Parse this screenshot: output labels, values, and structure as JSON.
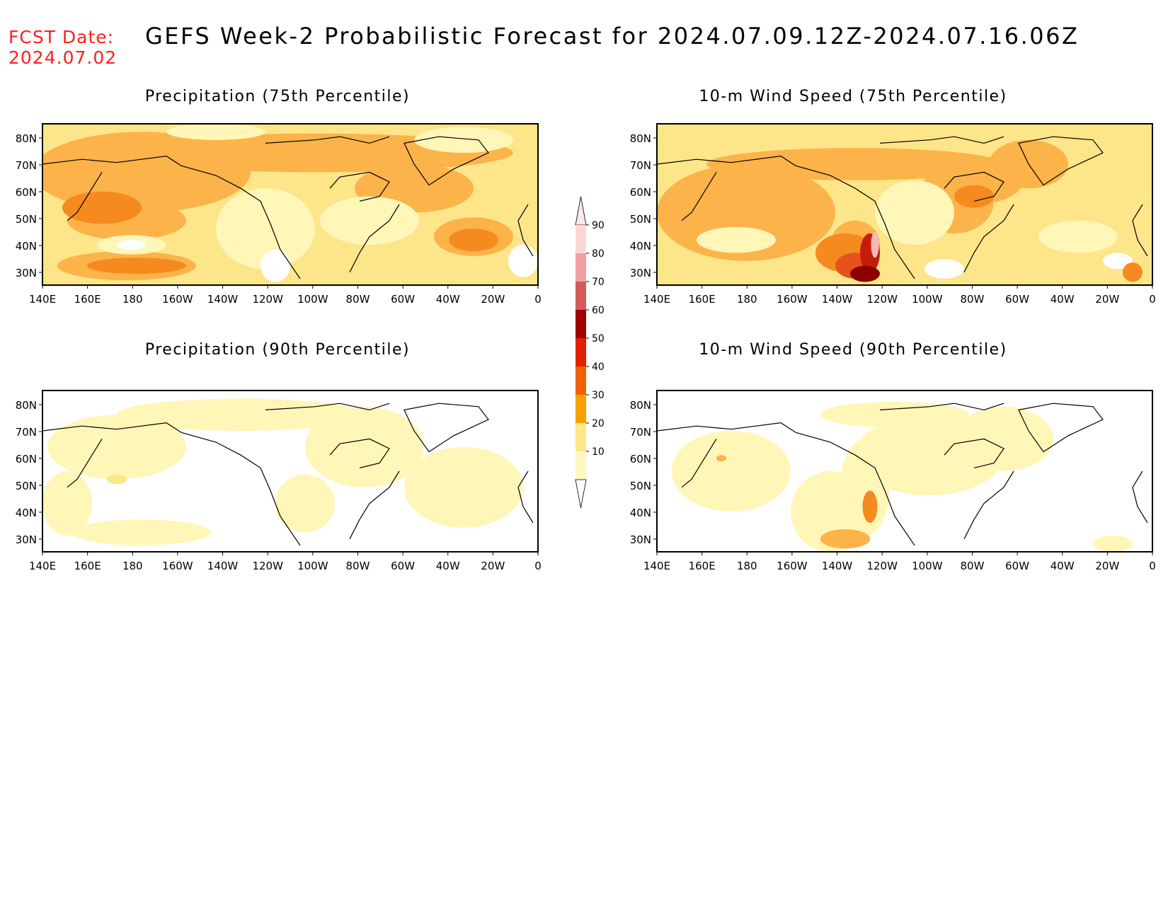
{
  "header": {
    "fcst_label": "FCST Date:",
    "fcst_date": "2024.07.02",
    "title": "GEFS Week-2 Probabilistic Forecast for 2024.07.09.12Z-2024.07.16.06Z"
  },
  "panels": [
    {
      "title": "Precipitation (75th Percentile)",
      "variable": "precipitation",
      "percentile": 75
    },
    {
      "title": "10-m Wind Speed (75th Percentile)",
      "variable": "wind",
      "percentile": 75
    },
    {
      "title": "Precipitation (90th Percentile)",
      "variable": "precipitation",
      "percentile": 90
    },
    {
      "title": "10-m Wind Speed (90th Percentile)",
      "variable": "wind",
      "percentile": 90
    }
  ],
  "axes": {
    "lon_labels": [
      "140E",
      "160E",
      "180",
      "160W",
      "140W",
      "120W",
      "100W",
      "80W",
      "60W",
      "40W",
      "20W",
      "0"
    ],
    "lat_labels": [
      "80N",
      "70N",
      "60N",
      "50N",
      "40N",
      "30N"
    ]
  },
  "colorbar": {
    "levels": [
      "90",
      "80",
      "70",
      "60",
      "50",
      "40",
      "30",
      "20",
      "10"
    ],
    "colors": [
      "#fcd6d6",
      "#f0a0a0",
      "#d45a5a",
      "#a00000",
      "#e02000",
      "#f06000",
      "#f8a000",
      "#fde88a",
      "#fff7c0"
    ]
  },
  "palette": {
    "p10": "#fff6b8",
    "p20": "#fde58a",
    "p30": "#fbb34a",
    "p40": "#f58a1e",
    "p50": "#e5531a",
    "p60": "#c41e0a",
    "p70": "#8b0000",
    "p80": "#d46060",
    "p90": "#f6b8b8"
  }
}
